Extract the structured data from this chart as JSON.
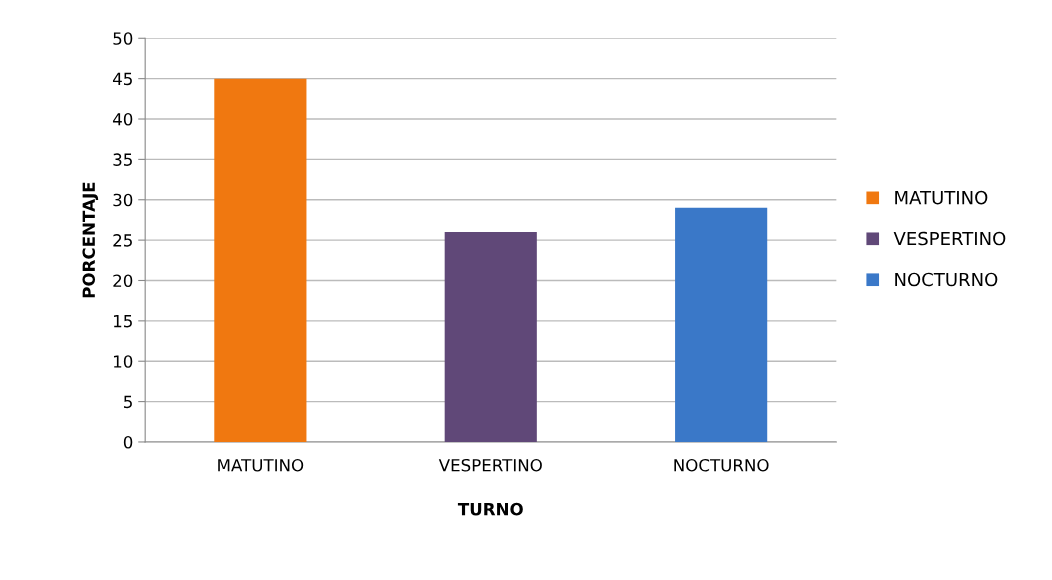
{
  "chart_data": {
    "type": "bar",
    "xlabel": "TURNO",
    "ylabel": "PORCENTAJE",
    "categories": [
      "MATUTINO",
      "VESPERTINO",
      "NOCTURNO"
    ],
    "series": [
      {
        "name": "MATUTINO",
        "color": "#f07810",
        "values": [
          45,
          null,
          null
        ]
      },
      {
        "name": "VESPERTINO",
        "color": "#604878",
        "values": [
          null,
          26,
          null
        ]
      },
      {
        "name": "NOCTURNO",
        "color": "#3a78c8",
        "values": [
          null,
          null,
          29
        ]
      }
    ],
    "ylim": [
      0,
      50
    ],
    "yticks": [
      0,
      5,
      10,
      15,
      20,
      25,
      30,
      35,
      40,
      45,
      50
    ],
    "grid": "y",
    "legend": "right"
  }
}
